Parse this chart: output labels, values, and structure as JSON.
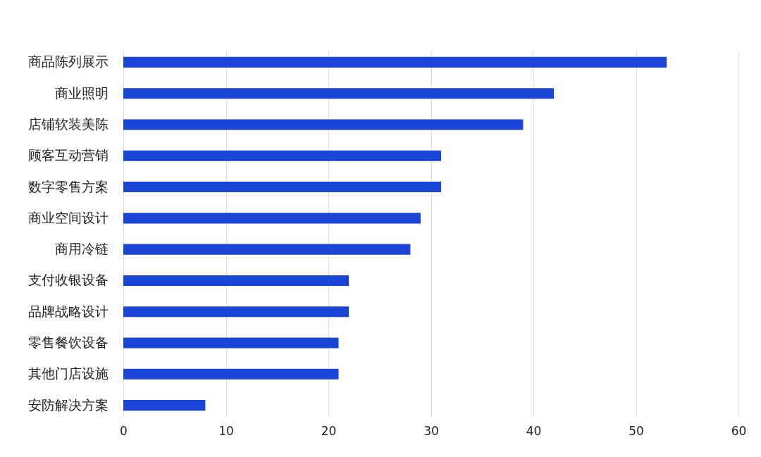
{
  "chart_data": {
    "type": "bar",
    "orientation": "horizontal",
    "categories": [
      "商品陈列展示",
      "商业照明",
      "店铺软装美陈",
      "顾客互动营销",
      "数字零售方案",
      "商业空间设计",
      "商用冷链",
      "支付收银设备",
      "品牌战略设计",
      "零售餐饮设备",
      "其他门店设施",
      "安防解决方案"
    ],
    "values": [
      53,
      42,
      39,
      31,
      31,
      29,
      28,
      22,
      22,
      21,
      21,
      8
    ],
    "color": "#1a45d6",
    "xlim": [
      0,
      60
    ],
    "xticks": [
      0,
      10,
      20,
      30,
      40,
      50,
      60
    ],
    "grid": "x"
  }
}
